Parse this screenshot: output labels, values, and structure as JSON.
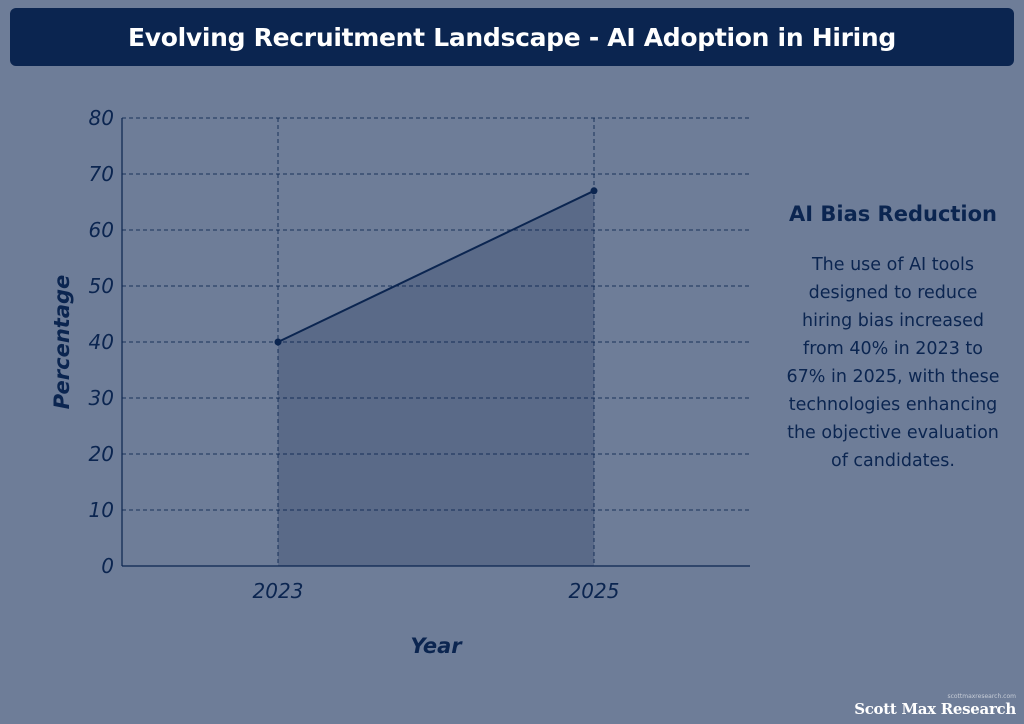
{
  "page": {
    "title": "Evolving Recruitment Landscape - AI Adoption in Hiring",
    "side_panel": {
      "title": "AI Bias Reduction",
      "body": "The use of AI tools designed to reduce hiring bias increased from 40% in 2023 to 67% in 2025, with these technologies enhancing the objective evaluation of candidates."
    },
    "watermark": {
      "small_text": "scottmaxresearch.com",
      "brand": "Scott Max Research"
    }
  },
  "colors": {
    "background": "#6e7d98",
    "title_bar": "#0b2550",
    "line": "#0b2550",
    "area_fill": "#5a6a88",
    "grid": "#0b2550",
    "text": "#0b2550"
  },
  "chart_data": {
    "type": "area",
    "title": "",
    "xlabel": "Year",
    "ylabel": "Percentage",
    "categories": [
      "2023",
      "2025"
    ],
    "series": [
      {
        "values": [
          40,
          67
        ]
      }
    ],
    "ylim": [
      0,
      80
    ],
    "yticks": [
      0,
      10,
      20,
      30,
      40,
      50,
      60,
      70,
      80
    ],
    "grid": true
  }
}
